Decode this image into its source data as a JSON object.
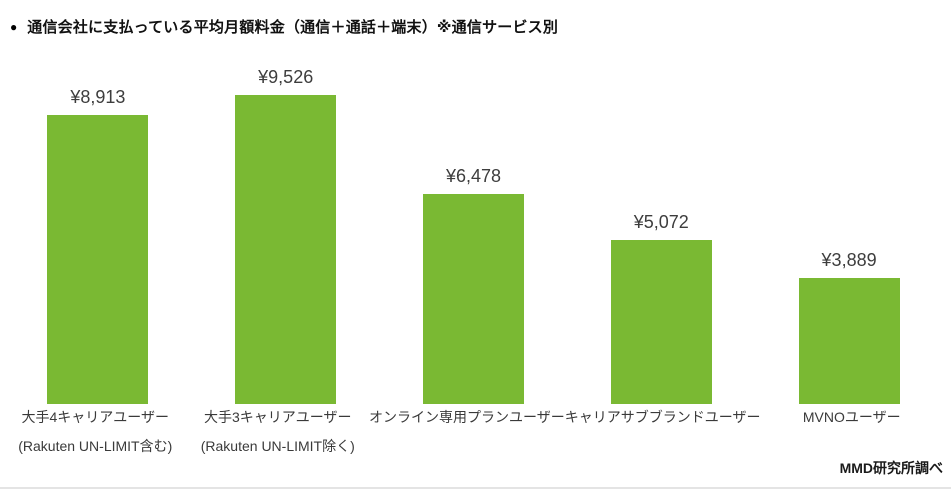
{
  "title": {
    "bullet": "●",
    "text": "通信会社に支払っている平均月額料金（通信＋通話＋端末）※通信サービス別"
  },
  "source_credit": "MMD研究所調べ",
  "colors": {
    "bar": "#7ab933",
    "value_label": "#3d3d3d",
    "category_label": "#3a3a3a",
    "title": "#111111",
    "divider": "#e4e4e4",
    "background": "#ffffff"
  },
  "chart_data": {
    "type": "bar",
    "title": "通信会社に支払っている平均月額料金（通信＋通話＋端末）※通信サービス別",
    "xlabel": "",
    "ylabel": "",
    "unit": "円",
    "ylim": [
      0,
      10000
    ],
    "grid": false,
    "legend": null,
    "axes_visible": false,
    "categories": [
      "大手4キャリアユーザー (Rakuten UN-LIMIT含む)",
      "大手3キャリアユーザー (Rakuten UN-LIMIT除く)",
      "オンライン専用プランユーザー",
      "キャリアサブブランドユーザー",
      "MVNOユーザー"
    ],
    "values": [
      8913,
      9526,
      6478,
      5072,
      3889
    ],
    "bars": [
      {
        "label_line1": "大手4キャリアユーザー",
        "label_line2": "(Rakuten UN-LIMIT含む)",
        "value": 8913,
        "value_label": "¥8,913"
      },
      {
        "label_line1": "大手3キャリアユーザー",
        "label_line2": "(Rakuten UN-LIMIT除く)",
        "value": 9526,
        "value_label": "¥9,526"
      },
      {
        "label_line1": "オンライン専用プランユーザー",
        "label_line2": "",
        "value": 6478,
        "value_label": "¥6,478"
      },
      {
        "label_line1": "キャリアサブブランドユーザー",
        "label_line2": "",
        "value": 5072,
        "value_label": "¥5,072"
      },
      {
        "label_line1": "MVNOユーザー",
        "label_line2": "",
        "value": 3889,
        "value_label": "¥3,889"
      }
    ],
    "source": "MMD研究所調べ"
  }
}
